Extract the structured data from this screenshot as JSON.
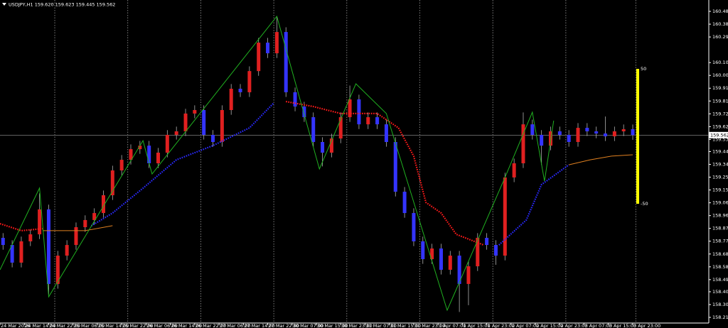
{
  "chart_data": {
    "type": "candlestick",
    "title": "USDJPY,H1  159.620 159.623 159.445 159.562",
    "up_color": "#e02020",
    "down_color": "#3434ff",
    "wick_color": "#b0b0b0",
    "x": [
      1,
      4,
      7,
      10,
      13,
      16,
      19,
      22,
      25,
      28,
      31,
      34,
      37,
      40,
      43,
      46,
      49,
      52,
      55,
      58,
      61,
      64,
      67,
      70,
      73,
      76,
      79,
      82,
      85,
      88,
      91,
      94,
      97,
      100,
      103,
      106,
      109,
      112,
      115,
      118,
      121,
      124,
      127,
      130,
      133,
      136,
      139,
      142,
      145,
      148,
      151,
      154,
      157,
      160,
      163,
      166,
      169,
      172,
      175,
      178,
      181,
      184,
      187,
      190,
      193,
      196,
      199,
      202,
      205,
      208
    ],
    "open": [
      158.8,
      158.747,
      158.616,
      158.774,
      158.826,
      159.011,
      158.458,
      158.668,
      158.747,
      158.879,
      158.932,
      158.984,
      159.116,
      159.3,
      159.379,
      159.458,
      159.484,
      159.353,
      159.432,
      159.564,
      159.59,
      159.722,
      159.748,
      159.564,
      159.511,
      159.748,
      159.906,
      159.88,
      160.037,
      160.248,
      160.169,
      160.327,
      159.88,
      159.774,
      159.695,
      159.511,
      159.432,
      159.537,
      159.695,
      159.827,
      159.642,
      159.695,
      159.642,
      159.511,
      159.142,
      158.984,
      158.774,
      158.642,
      158.721,
      158.563,
      158.668,
      158.458,
      158.589,
      158.8,
      158.747,
      158.668,
      159.248,
      159.353,
      159.642,
      159.564,
      159.484,
      159.59,
      159.564,
      159.511,
      159.616,
      159.59,
      159.574,
      159.553,
      159.59,
      159.606
    ],
    "high": [
      158.835,
      158.782,
      158.809,
      158.861,
      159.13,
      159.046,
      158.703,
      158.782,
      158.914,
      158.967,
      159.019,
      159.151,
      159.335,
      159.414,
      159.493,
      159.519,
      159.519,
      159.467,
      159.599,
      159.625,
      159.757,
      159.783,
      159.783,
      159.599,
      159.783,
      159.941,
      159.941,
      160.072,
      160.283,
      160.283,
      160.44,
      160.362,
      159.915,
      159.809,
      159.73,
      159.546,
      159.572,
      159.73,
      159.93,
      159.862,
      159.73,
      159.73,
      159.677,
      159.546,
      159.177,
      159.019,
      158.809,
      158.756,
      158.756,
      158.703,
      158.703,
      158.624,
      158.835,
      158.835,
      158.782,
      159.283,
      159.388,
      159.73,
      159.677,
      159.599,
      159.625,
      159.625,
      159.599,
      159.651,
      159.651,
      159.625,
      159.7,
      159.625,
      159.641,
      159.641
    ],
    "low": [
      158.712,
      158.581,
      158.581,
      158.739,
      158.791,
      158.38,
      158.423,
      158.633,
      158.712,
      158.844,
      158.897,
      158.949,
      159.081,
      159.265,
      159.344,
      159.423,
      159.318,
      159.318,
      159.397,
      159.529,
      159.555,
      159.687,
      159.529,
      159.476,
      159.476,
      159.713,
      159.845,
      159.845,
      160.002,
      160.134,
      160.134,
      159.845,
      159.739,
      159.66,
      159.476,
      159.33,
      159.397,
      159.502,
      159.66,
      159.607,
      159.607,
      159.607,
      159.476,
      159.107,
      158.949,
      158.739,
      158.607,
      158.607,
      158.528,
      158.528,
      158.25,
      158.3,
      158.554,
      158.712,
      158.6,
      158.633,
      159.213,
      159.318,
      159.529,
      159.34,
      159.449,
      159.529,
      159.476,
      159.476,
      159.555,
      159.539,
      159.518,
      159.518,
      159.555,
      159.527
    ],
    "close": [
      158.747,
      158.616,
      158.774,
      158.826,
      159.011,
      158.458,
      158.668,
      158.747,
      158.879,
      158.932,
      158.984,
      159.116,
      159.3,
      159.379,
      159.458,
      159.484,
      159.353,
      159.432,
      159.564,
      159.59,
      159.722,
      159.748,
      159.564,
      159.511,
      159.748,
      159.906,
      159.88,
      160.037,
      160.248,
      160.169,
      160.327,
      159.88,
      159.774,
      159.695,
      159.511,
      159.432,
      159.537,
      159.695,
      159.827,
      159.642,
      159.695,
      159.642,
      159.511,
      159.142,
      158.984,
      158.774,
      158.642,
      158.721,
      158.563,
      158.668,
      158.458,
      158.589,
      158.8,
      158.747,
      158.668,
      159.248,
      159.353,
      159.642,
      159.564,
      159.484,
      159.59,
      159.564,
      159.511,
      159.616,
      159.59,
      159.574,
      159.553,
      159.59,
      159.606,
      159.562
    ],
    "xlim": [
      0,
      233
    ],
    "xticks": [
      {
        "value": 0,
        "label": "24 Mar 2026"
      },
      {
        "value": 8,
        "label": "24 Mar 14:00"
      },
      {
        "value": 16,
        "label": "24 Mar 22:00"
      },
      {
        "value": 24,
        "label": "25 Mar 06:00"
      },
      {
        "value": 32,
        "label": "25 Mar 14:00"
      },
      {
        "value": 40,
        "label": "25 Mar 22:00"
      },
      {
        "value": 48,
        "label": "26 Mar 06:00"
      },
      {
        "value": 56,
        "label": "26 Mar 14:00"
      },
      {
        "value": 64,
        "label": "26 Mar 22:00"
      },
      {
        "value": 72,
        "label": "27 Mar 06:00"
      },
      {
        "value": 80,
        "label": "27 Mar 14:00"
      },
      {
        "value": 88,
        "label": "27 Mar 22:00"
      },
      {
        "value": 96,
        "label": "30 Mar 07:00"
      },
      {
        "value": 104,
        "label": "30 Mar 15:00"
      },
      {
        "value": 112,
        "label": "30 Mar 23:00"
      },
      {
        "value": 120,
        "label": "31 Mar 07:00"
      },
      {
        "value": 128,
        "label": "31 Mar 15:00"
      },
      {
        "value": 136,
        "label": "31 Mar 23:00"
      },
      {
        "value": 144,
        "label": "1 Apr 07:00"
      },
      {
        "value": 152,
        "label": "1 Apr 15:00"
      },
      {
        "value": 160,
        "label": "1 Apr 23:00"
      },
      {
        "value": 168,
        "label": "2 Apr 07:00"
      },
      {
        "value": 176,
        "label": "2 Apr 15:00"
      },
      {
        "value": 184,
        "label": "2 Apr 23:00"
      },
      {
        "value": 192,
        "label": "3 Apr 07:00"
      },
      {
        "value": 200,
        "label": "3 Apr 15:00"
      },
      {
        "value": 208,
        "label": "3 Apr 23:00"
      }
    ],
    "separators": [
      18,
      42,
      66,
      90,
      114,
      138,
      162,
      186,
      209
    ],
    "ylim": [
      158.168,
      160.538
    ],
    "yticks": [
      {
        "value": 160.48,
        "label": "160.480"
      },
      160.385,
      {
        "value": 160.29,
        "label": "160.290"
      },
      {
        "value": 160.1,
        "label": "160.100"
      },
      160.005,
      {
        "value": 159.91,
        "label": "159.910"
      },
      159.815,
      {
        "value": 159.72,
        "label": "159.720"
      },
      159.625,
      {
        "value": 159.53,
        "label": "159.530"
      },
      {
        "value": 159.44,
        "label": "159.440"
      },
      159.345,
      {
        "value": 159.25,
        "label": "159.250"
      },
      159.155,
      {
        "value": 159.06,
        "label": "159.060"
      },
      158.965,
      {
        "value": 158.87,
        "label": "158.870"
      },
      158.775,
      {
        "value": 158.68,
        "label": "158.680"
      },
      158.585,
      {
        "value": 158.49,
        "label": "158.490"
      },
      {
        "value": 158.4,
        "label": "158.400"
      },
      158.305,
      {
        "value": 158.21,
        "label": "158.210"
      }
    ],
    "current_price": 159.562,
    "lines": [
      {
        "style": "dotted",
        "color": "#ff1a1a",
        "x": [
          0,
          7,
          14,
          15,
          94,
          103,
          112,
          124,
          131,
          136,
          140,
          145,
          150,
          159
        ],
        "values": [
          158.905,
          158.853,
          158.868,
          null,
          159.811,
          159.774,
          159.722,
          159.722,
          159.616,
          159.406,
          159.063,
          158.984,
          158.826,
          158.747
        ]
      },
      {
        "style": "dotted",
        "color": "#2a2aff",
        "x": [
          30,
          37,
          47,
          58,
          70,
          82,
          90,
          91,
          164,
          173,
          178,
          187
        ],
        "values": [
          158.889,
          158.984,
          159.168,
          159.379,
          159.484,
          159.616,
          159.8,
          null,
          158.747,
          158.932,
          159.195,
          159.342
        ]
      },
      {
        "style": "solid",
        "color": "#e08020",
        "x": [
          14,
          28,
          37,
          38,
          187,
          194,
          201,
          208
        ],
        "values": [
          158.853,
          158.853,
          158.89,
          null,
          159.342,
          159.379,
          159.406,
          159.416
        ]
      },
      {
        "style": "solid",
        "color": "#20b020",
        "x": [
          0,
          13,
          16,
          47,
          50,
          91,
          105,
          117,
          127,
          147,
          166,
          175,
          179,
          182
        ],
        "values": [
          158.563,
          159.169,
          158.363,
          159.521,
          159.274,
          160.443,
          159.311,
          159.943,
          159.722,
          158.263,
          159.248,
          159.732,
          159.221,
          159.669
        ]
      }
    ],
    "oscillator": {
      "color": "#ffff00",
      "ticks": [
        50,
        -50
      ]
    }
  }
}
